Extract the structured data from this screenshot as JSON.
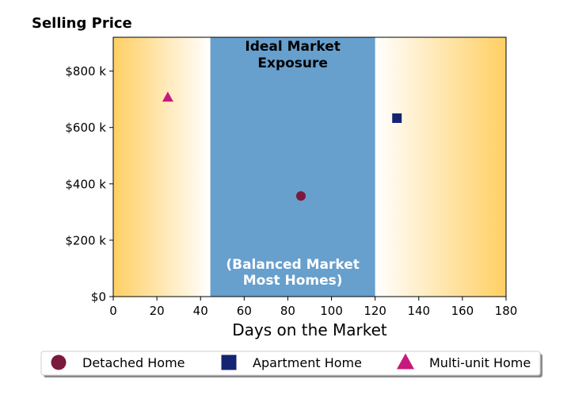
{
  "chart_data": {
    "type": "scatter",
    "title": "Selling Price",
    "xlabel": "Days on the Market",
    "ylabel": "",
    "xlim": [
      0,
      180
    ],
    "ylim": [
      0,
      920000
    ],
    "x_ticks": [
      0,
      20,
      40,
      60,
      80,
      100,
      120,
      140,
      160,
      180
    ],
    "x_tick_labels": [
      "0",
      "20",
      "40",
      "60",
      "80",
      "100",
      "120",
      "140",
      "160",
      "180"
    ],
    "y_ticks": [
      0,
      200000,
      400000,
      600000,
      800000
    ],
    "y_tick_labels": [
      "$0",
      "$200 k",
      "$400 k",
      "$600 k",
      "$800 k"
    ],
    "grid": false,
    "legend_position": "bottom-center",
    "series": [
      {
        "name": "Detached Home",
        "marker": "circle",
        "color": "#7b1a3c",
        "points": [
          {
            "x": 86,
            "y": 357000
          }
        ]
      },
      {
        "name": "Apartment Home",
        "marker": "square",
        "color": "#142473",
        "points": [
          {
            "x": 130,
            "y": 633000
          }
        ]
      },
      {
        "name": "Multi-unit Home",
        "marker": "triangle",
        "color": "#c8187e",
        "points": [
          {
            "x": 25,
            "y": 707000
          }
        ]
      }
    ],
    "band": {
      "x_start": 44.5,
      "x_end": 120,
      "color": "#679fcd",
      "label_top": "Ideal Market\nExposure",
      "label_bottom": "(Balanced Market\nMost Homes)"
    },
    "background": {
      "edge_color": "#ffcf63",
      "center_color": "#ffffff"
    }
  }
}
